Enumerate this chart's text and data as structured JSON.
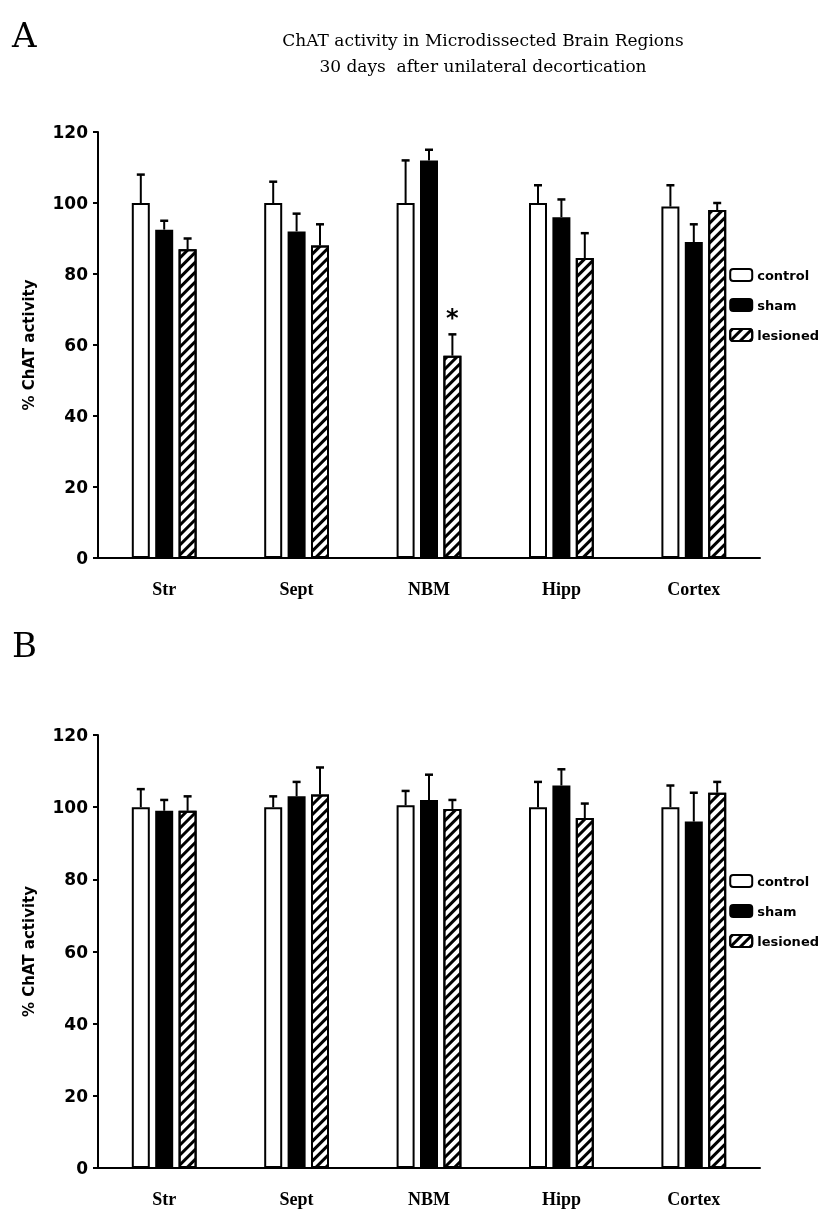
{
  "chart_data": [
    {
      "type": "bar",
      "title": "ChAT activity in Microdissected Brain Regions\n30 days  after unilateral decortication",
      "ylabel": "% ChAT activity",
      "categories": [
        "Str",
        "Sept",
        "NBM",
        "Hipp",
        "Cortex"
      ],
      "series": [
        {
          "name": "control",
          "color": "#ffffff",
          "values": [
            100,
            100,
            100,
            100,
            99
          ],
          "errors": [
            8,
            6,
            12,
            5,
            6
          ]
        },
        {
          "name": "sham",
          "color": "#000000",
          "values": [
            92.5,
            92,
            112,
            96,
            89
          ],
          "errors": [
            2.5,
            5,
            3,
            5,
            5
          ]
        },
        {
          "name": "lesioned",
          "color": "#ffffff",
          "values": [
            87,
            88,
            57,
            84.5,
            98
          ],
          "errors": [
            3,
            6,
            6,
            7,
            2
          ]
        }
      ],
      "ylim": [
        0,
        120
      ],
      "yticks": [
        0,
        20,
        40,
        60,
        80,
        100,
        120
      ],
      "legend": "right",
      "annotations": [
        "A",
        "*"
      ]
    },
    {
      "type": "bar",
      "ylabel": "% ChAT activity",
      "categories": [
        "Str",
        "Sept",
        "NBM",
        "Hipp",
        "Cortex"
      ],
      "series": [
        {
          "name": "control",
          "color": "#ffffff",
          "values": [
            100,
            100,
            100.5,
            100,
            100
          ],
          "errors": [
            5,
            3,
            4,
            7,
            6
          ]
        },
        {
          "name": "sham",
          "color": "#000000",
          "values": [
            99,
            103,
            102,
            106,
            96
          ],
          "errors": [
            3,
            4,
            7,
            4.5,
            8
          ]
        },
        {
          "name": "lesioned",
          "color": "#ffffff",
          "values": [
            99,
            103.5,
            99.5,
            97,
            104
          ],
          "errors": [
            4,
            7.5,
            2.5,
            4,
            3
          ]
        }
      ],
      "ylim": [
        0,
        120
      ],
      "yticks": [
        0,
        20,
        40,
        60,
        80,
        100,
        120
      ],
      "legend": "right",
      "annotations": [
        "B"
      ]
    }
  ]
}
